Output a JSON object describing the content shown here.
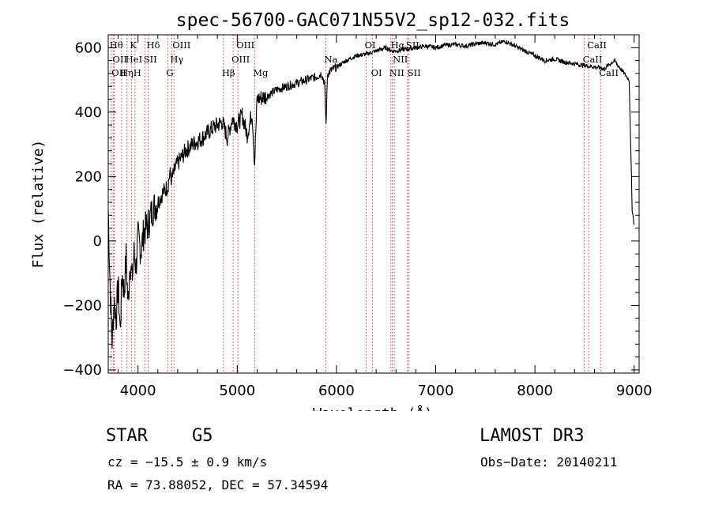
{
  "chart_data": {
    "type": "line",
    "title": "spec-56700-GAC071N55V2_sp12-032.fits",
    "xlabel": "Wavelength (Å)",
    "ylabel": "Flux (relative)",
    "xlim": [
      3700,
      9050
    ],
    "ylim": [
      -410,
      640
    ],
    "xticks": [
      4000,
      5000,
      6000,
      7000,
      8000,
      9000
    ],
    "yticks": [
      -400,
      -200,
      0,
      200,
      400,
      600
    ],
    "xtick_labels": [
      "4000",
      "5000",
      "6000",
      "7000",
      "8000",
      "9000"
    ],
    "ytick_labels": [
      "−400",
      "−200",
      "0",
      "200",
      "400",
      "600"
    ],
    "series": [
      {
        "name": "spectrum",
        "x": [
          3700,
          3720,
          3740,
          3760,
          3780,
          3800,
          3820,
          3840,
          3860,
          3880,
          3900,
          3920,
          3940,
          3960,
          3980,
          4000,
          4030,
          4060,
          4100,
          4150,
          4200,
          4250,
          4300,
          4320,
          4340,
          4380,
          4420,
          4480,
          4550,
          4650,
          4750,
          4850,
          4900,
          4950,
          5000,
          5050,
          5100,
          5150,
          5175,
          5200,
          5300,
          5400,
          5500,
          5600,
          5700,
          5800,
          5850,
          5880,
          5895,
          5910,
          5950,
          6000,
          6100,
          6200,
          6300,
          6400,
          6500,
          6560,
          6600,
          6700,
          6800,
          6900,
          7000,
          7100,
          7200,
          7300,
          7400,
          7500,
          7600,
          7700,
          7800,
          7900,
          8000,
          8100,
          8200,
          8300,
          8400,
          8500,
          8600,
          8700,
          8800,
          8900,
          8950,
          8980,
          9000
        ],
        "y": [
          100,
          -150,
          -310,
          -180,
          -240,
          -130,
          -280,
          -100,
          -160,
          -50,
          -200,
          -60,
          -120,
          -40,
          -80,
          10,
          -30,
          30,
          50,
          100,
          120,
          150,
          170,
          210,
          190,
          230,
          250,
          280,
          300,
          320,
          350,
          370,
          320,
          380,
          360,
          390,
          330,
          400,
          240,
          440,
          450,
          470,
          480,
          490,
          500,
          510,
          520,
          490,
          360,
          520,
          530,
          540,
          560,
          575,
          580,
          590,
          600,
          590,
          590,
          595,
          600,
          605,
          600,
          608,
          610,
          605,
          612,
          615,
          610,
          620,
          605,
          590,
          575,
          560,
          565,
          555,
          550,
          545,
          540,
          535,
          560,
          520,
          500,
          100,
          50
        ]
      }
    ],
    "lines": [
      {
        "x": 3730,
        "label": "Hθ",
        "row": 0
      },
      {
        "x": 3760,
        "label": "OII",
        "row": 1
      },
      {
        "x": 3750,
        "label": "OII",
        "row": 2
      },
      {
        "x": 3835,
        "label": "Hη",
        "row": 2
      },
      {
        "x": 3889,
        "label": "HeI",
        "row": 1
      },
      {
        "x": 3934,
        "label": "K",
        "row": 0
      },
      {
        "x": 3969,
        "label": "H",
        "row": 2
      },
      {
        "x": 4072,
        "label": "SII",
        "row": 1
      },
      {
        "x": 4102,
        "label": "Hδ",
        "row": 0
      },
      {
        "x": 4300,
        "label": "G",
        "row": 2
      },
      {
        "x": 4340,
        "label": "Hγ",
        "row": 1
      },
      {
        "x": 4363,
        "label": "OIII",
        "row": 0
      },
      {
        "x": 4861,
        "label": "Hβ",
        "row": 2
      },
      {
        "x": 4959,
        "label": "OIII",
        "row": 1
      },
      {
        "x": 5007,
        "label": "OIII",
        "row": 0
      },
      {
        "x": 5175,
        "label": "Mg",
        "row": 2
      },
      {
        "x": 5893,
        "label": "Na",
        "row": 1
      },
      {
        "x": 6300,
        "label": "OI",
        "row": 0
      },
      {
        "x": 6364,
        "label": "OI",
        "row": 2
      },
      {
        "x": 6548,
        "label": "NII",
        "row": 2
      },
      {
        "x": 6563,
        "label": "Hα",
        "row": 0
      },
      {
        "x": 6583,
        "label": "NII",
        "row": 1
      },
      {
        "x": 6716,
        "label": "SII",
        "row": 0
      },
      {
        "x": 6731,
        "label": "SII",
        "row": 2
      },
      {
        "x": 8498,
        "label": "CaII",
        "row": 1
      },
      {
        "x": 8542,
        "label": "CaII",
        "row": 0
      },
      {
        "x": 8662,
        "label": "CaII",
        "row": 2
      }
    ]
  },
  "info": {
    "object_class": "STAR",
    "subclass": "G5",
    "survey": "LAMOST DR3",
    "cz": "cz = −15.5 ± 0.9 km/s",
    "obs_date": "Obs−Date: 20140211",
    "coords": "RA =  73.88052, DEC =  57.34594"
  },
  "colors": {
    "spectrum": "#000000",
    "line_markers": "#cc2222",
    "axes": "#000000"
  }
}
